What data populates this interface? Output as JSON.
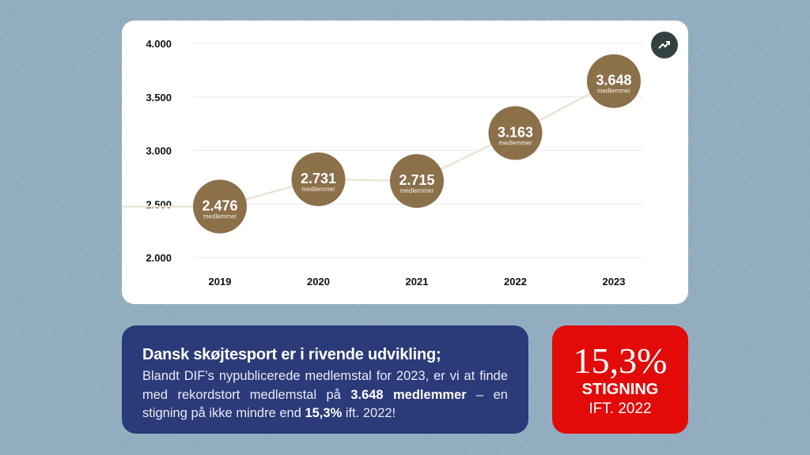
{
  "chart_data": {
    "type": "line",
    "categories": [
      "2019",
      "2020",
      "2021",
      "2022",
      "2023"
    ],
    "values": [
      2476,
      2731,
      2715,
      3163,
      3648
    ],
    "value_labels": [
      "2.476",
      "2.731",
      "2.715",
      "3.163",
      "3.648"
    ],
    "point_sublabel": "medlemmer",
    "yticks": [
      4000,
      3500,
      3000,
      2500,
      2000
    ],
    "ytick_labels": [
      "4.000",
      "3.500",
      "3.000",
      "2.500",
      "2.000"
    ],
    "ylim": [
      2000,
      4000
    ],
    "grid": true,
    "title": "",
    "xlabel": "",
    "ylabel": "",
    "colors": {
      "marker": "#8b704a",
      "line": "#ece3d6",
      "grid": "#eeeeee"
    }
  },
  "icon": "trending-up-icon",
  "info": {
    "title": "Dansk skøjtesport er i rivende udvikling;",
    "body": [
      {
        "text": "Blandt DIF’s nypublicerede medlemstal for 2023, er vi at finde med rekordstort medlemstal på ",
        "bold": false
      },
      {
        "text": "3.648 medlemmer",
        "bold": true
      },
      {
        "text": " – en stigning på ikke mindre end ",
        "bold": false
      },
      {
        "text": "15,3%",
        "bold": true
      },
      {
        "text": " ift. 2022!",
        "bold": false
      }
    ]
  },
  "highlight": {
    "percent": "15,3%",
    "label": "STIGNING",
    "sub": "IFT. 2022"
  },
  "colors": {
    "info_bg": "#2b3a78",
    "highlight_bg": "#e30a0a"
  }
}
